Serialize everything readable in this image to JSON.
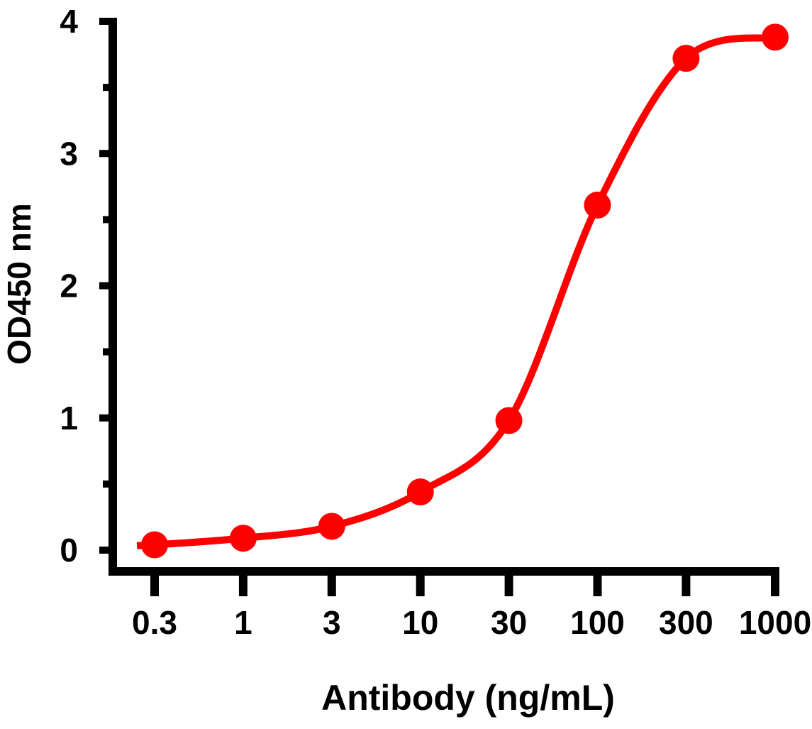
{
  "chart_data": {
    "type": "line",
    "title": "",
    "xlabel": "Antibody (ng/mL)",
    "ylabel": "OD450 nm",
    "x_scale": "categorical (log-spaced concentrations, equal spacing)",
    "categories": [
      "0.3",
      "1",
      "3",
      "10",
      "30",
      "100",
      "300",
      "1000"
    ],
    "x": [
      0.3,
      1,
      3,
      10,
      30,
      100,
      300,
      1000
    ],
    "series": [
      {
        "values": [
          0.04,
          0.09,
          0.18,
          0.44,
          0.98,
          2.61,
          3.72,
          3.88
        ],
        "color": "#ff0000",
        "marker": "circle"
      }
    ],
    "ylim": [
      0,
      4
    ],
    "yticks": [
      "0",
      "1",
      "2",
      "3",
      "4"
    ],
    "grid": false,
    "legend": "none"
  }
}
